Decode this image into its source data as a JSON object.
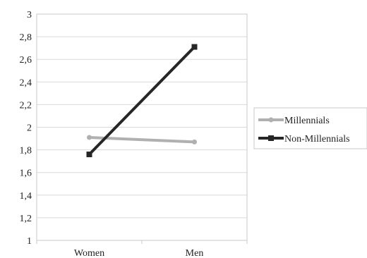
{
  "chart_data": {
    "type": "line",
    "categories": [
      "Women",
      "Men"
    ],
    "series": [
      {
        "name": "Millennials",
        "values": [
          1.91,
          1.87
        ],
        "color": "#b0b0b0",
        "marker": "circle"
      },
      {
        "name": "Non-Millennials",
        "values": [
          1.76,
          2.71
        ],
        "color": "#262626",
        "marker": "square"
      }
    ],
    "y_ticks": [
      "1",
      "1,2",
      "1,4",
      "1,6",
      "1,8",
      "2",
      "2,2",
      "2,4",
      "2,6",
      "2,8",
      "3"
    ],
    "ylim": [
      1,
      3
    ],
    "grid": true,
    "legend_position": "right",
    "title": "",
    "xlabel": "",
    "ylabel": ""
  }
}
